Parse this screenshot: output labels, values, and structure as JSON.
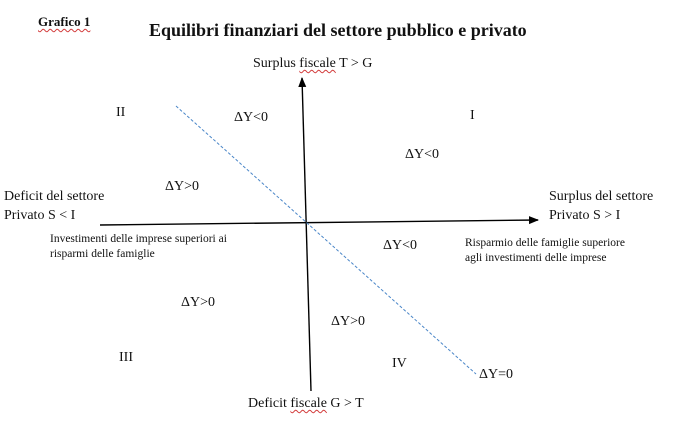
{
  "figure": {
    "caption": "Grafico 1",
    "title": "Equilibri finanziari del settore pubblico e privato"
  },
  "axes": {
    "top": {
      "prefix": "Surplus ",
      "underlined": "fiscale",
      "suffix": " T > G"
    },
    "bottom": {
      "prefix": "Deficit ",
      "underlined": "fiscale",
      "suffix": " G > T"
    },
    "left_line1": "Deficit del settore",
    "left_line2": "Privato S < I",
    "right_line1": "Surplus del settore",
    "right_line2": "Privato S > I"
  },
  "quadrants": {
    "q1": "I",
    "q2": "II",
    "q3": "III",
    "q4": "IV"
  },
  "notes": {
    "left": "Investimenti delle imprese superiori ai risparmi delle famiglie",
    "right": "Risparmio delle famiglie superiore agli investimenti delle imprese"
  },
  "regions": {
    "r1": "ΔY<0",
    "r2": "ΔY<0",
    "r3": "ΔY>0",
    "r4": "ΔY<0",
    "r5": "ΔY>0",
    "r6": "ΔY>0"
  },
  "line_label": "ΔY=0",
  "colors": {
    "dashed_line": "#4a86c8",
    "axis": "#000000",
    "underline": "#d23a3a"
  }
}
